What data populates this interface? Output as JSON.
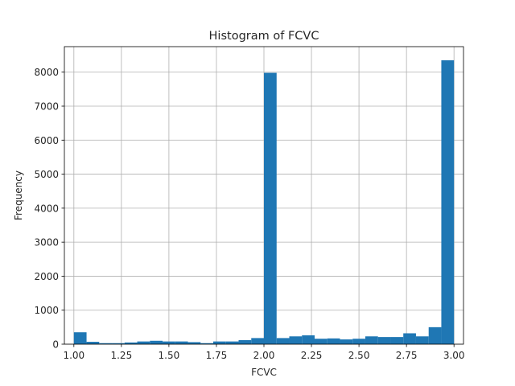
{
  "chart_data": {
    "type": "bar",
    "title": "Histogram of FCVC",
    "xlabel": "FCVC",
    "ylabel": "Frequency",
    "xlim": [
      0.95,
      3.05
    ],
    "ylim": [
      0,
      8750
    ],
    "grid": true,
    "bar_color": "#1f77b4",
    "bin_edges": [
      1.0,
      1.0667,
      1.1333,
      1.2,
      1.2667,
      1.3333,
      1.4,
      1.4667,
      1.5333,
      1.6,
      1.6667,
      1.7333,
      1.8,
      1.8667,
      1.9333,
      2.0,
      2.0667,
      2.1333,
      2.2,
      2.2667,
      2.3333,
      2.4,
      2.4667,
      2.5333,
      2.6,
      2.6667,
      2.7333,
      2.8,
      2.8667,
      2.9333,
      3.0
    ],
    "values": [
      350,
      70,
      30,
      30,
      50,
      80,
      100,
      80,
      80,
      60,
      30,
      80,
      80,
      120,
      180,
      7980,
      180,
      230,
      260,
      160,
      170,
      140,
      160,
      230,
      210,
      210,
      320,
      230,
      500,
      8350
    ],
    "xticks": [
      1.0,
      1.25,
      1.5,
      1.75,
      2.0,
      2.25,
      2.5,
      2.75,
      3.0
    ],
    "xtick_labels": [
      "1.00",
      "1.25",
      "1.50",
      "1.75",
      "2.00",
      "2.25",
      "2.50",
      "2.75",
      "3.00"
    ],
    "yticks": [
      0,
      1000,
      2000,
      3000,
      4000,
      5000,
      6000,
      7000,
      8000
    ],
    "ytick_labels": [
      "0",
      "1000",
      "2000",
      "3000",
      "4000",
      "5000",
      "6000",
      "7000",
      "8000"
    ]
  }
}
